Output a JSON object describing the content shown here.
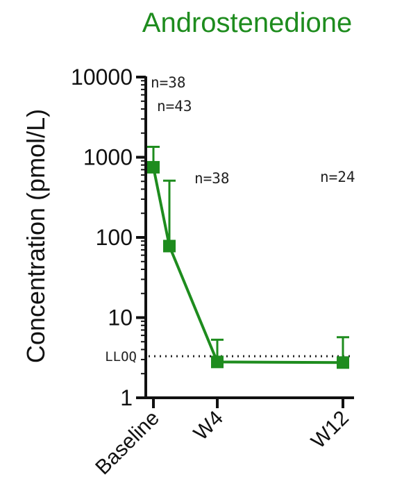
{
  "chart_data": {
    "type": "line",
    "title": "Androstenedione",
    "ylabel": "Concentration (pmol/L)",
    "xlabel": "",
    "yscale": "log",
    "ylim": [
      1,
      10000
    ],
    "yticks": [
      "1",
      "10",
      "100",
      "1000",
      "10000"
    ],
    "categories": [
      "Baseline",
      "W4",
      "W12"
    ],
    "series": [
      {
        "color": "#1e8c1e",
        "points": [
          {
            "x": "Baseline",
            "y": 750,
            "error_upper": 1350
          },
          {
            "x": "Baseline",
            "y": 78,
            "error_upper": 510
          },
          {
            "x": "W4",
            "y": 2.8,
            "error_upper": 5.3
          },
          {
            "x": "W12",
            "y": 2.75,
            "error_upper": 5.7
          }
        ]
      }
    ],
    "annotations": [
      "n=38",
      "n=43",
      "n=38",
      "n=24"
    ],
    "reference_line": {
      "label": "LLOQ",
      "y": 3.3,
      "style": "dotted"
    },
    "grid": false,
    "legend": "none"
  }
}
